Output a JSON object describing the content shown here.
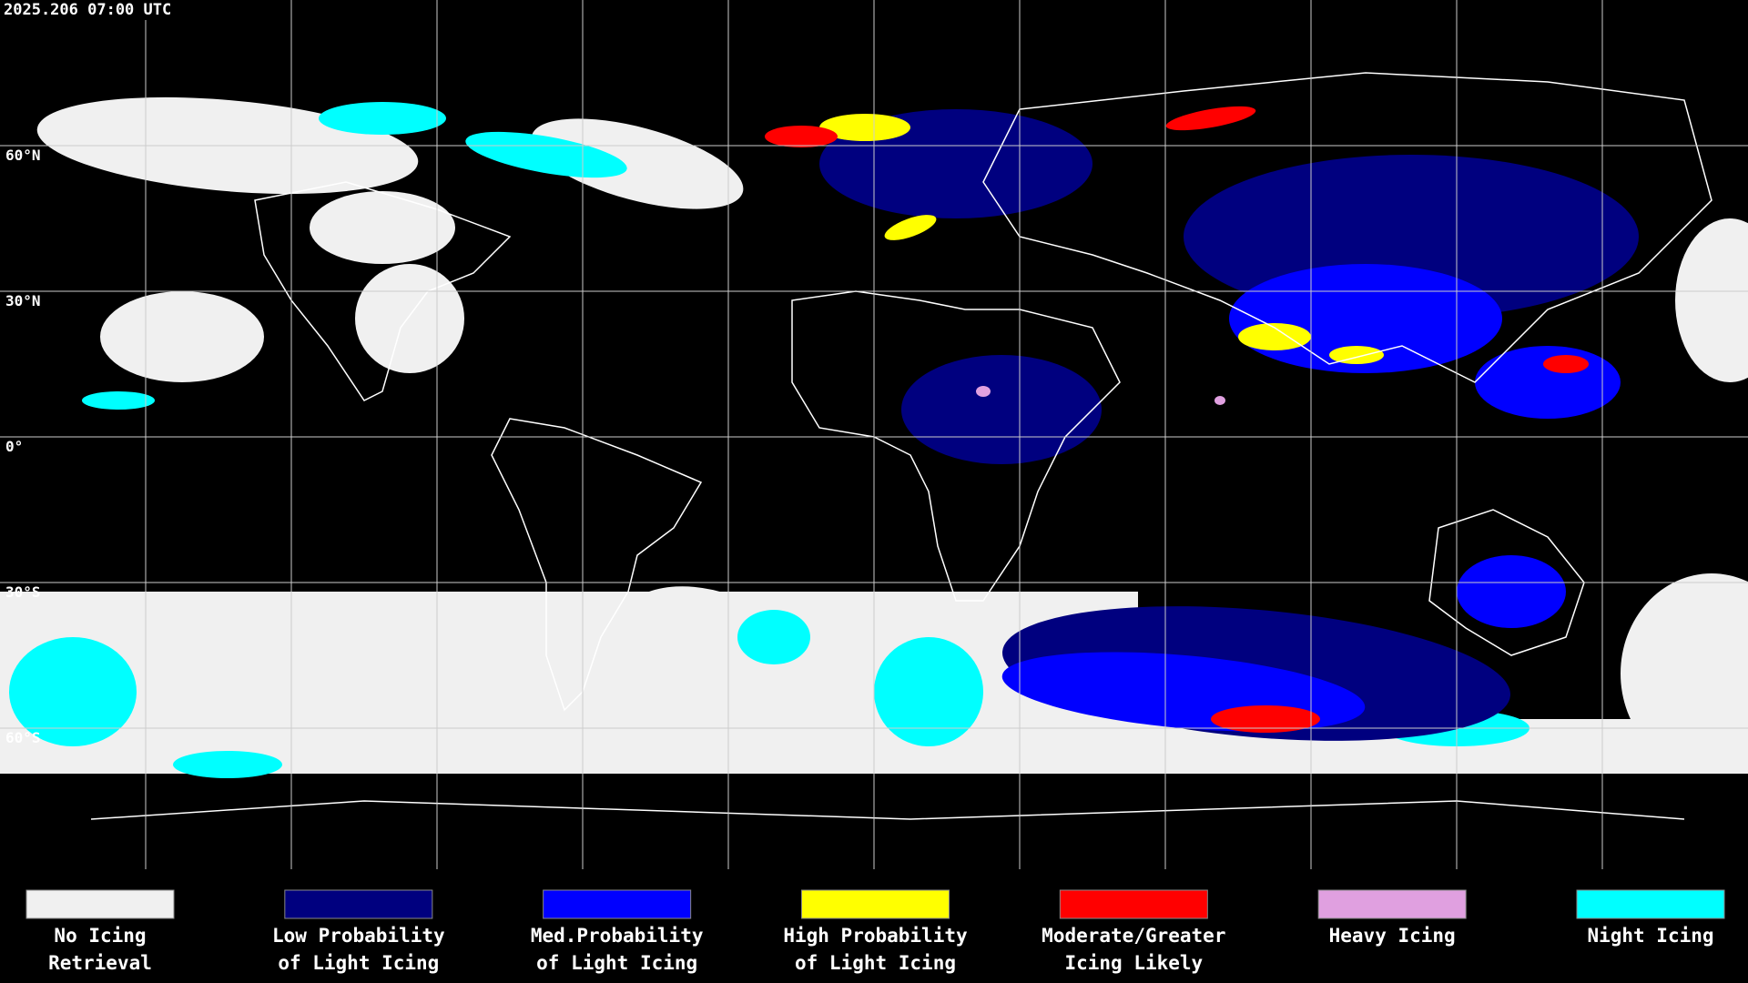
{
  "timestamp": "2025.206 07:00 UTC",
  "map": {
    "lat_labels": [
      "60°N",
      "30°N",
      "0°",
      "30°S",
      "60°S"
    ]
  },
  "legend": [
    {
      "lines": [
        "No Icing",
        "Retrieval"
      ],
      "color": "#f0f0f0"
    },
    {
      "lines": [
        "Low Probability",
        "of Light Icing"
      ],
      "color": "#00007f"
    },
    {
      "lines": [
        "Med.Probability",
        "of Light Icing"
      ],
      "color": "#0000ff"
    },
    {
      "lines": [
        "High Probability",
        "of Light Icing"
      ],
      "color": "#ffff00"
    },
    {
      "lines": [
        "Moderate/Greater",
        "Icing Likely"
      ],
      "color": "#ff0000"
    },
    {
      "lines": [
        "Heavy Icing"
      ],
      "color": "#e0a0e0"
    },
    {
      "lines": [
        "Night Icing"
      ],
      "color": "#00ffff"
    }
  ]
}
